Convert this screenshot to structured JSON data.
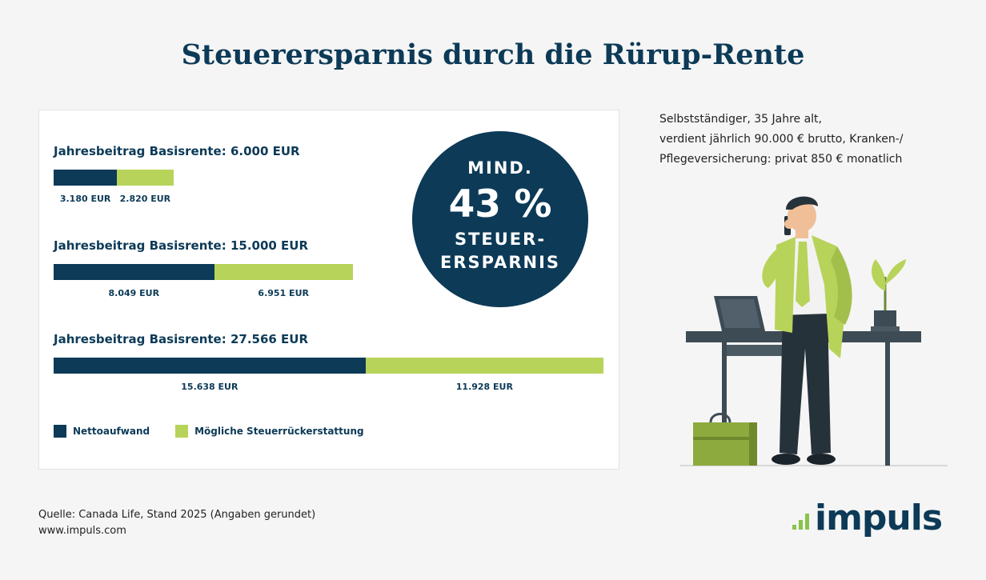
{
  "title": "Steuerersparnis durch die Rürup-Rente",
  "chart_data": {
    "type": "bar",
    "orientation": "horizontal-stacked",
    "groups": [
      {
        "label": "Jahresbeitrag Basisrente: 6.000 EUR",
        "total": 6000,
        "values": [
          3180,
          2820
        ],
        "value_labels": [
          "3.180 EUR",
          "2.820 EUR"
        ]
      },
      {
        "label": "Jahresbeitrag Basisrente: 15.000 EUR",
        "total": 15000,
        "values": [
          8049,
          6951
        ],
        "value_labels": [
          "8.049 EUR",
          "6.951 EUR"
        ]
      },
      {
        "label": "Jahresbeitrag Basisrente: 27.566 EUR",
        "total": 27566,
        "values": [
          15638,
          11928
        ],
        "value_labels": [
          "15.638 EUR",
          "11.928 EUR"
        ]
      }
    ],
    "series": [
      {
        "name": "Nettoaufwand",
        "color": "#0c3a57"
      },
      {
        "name": "Mögliche Steuerrückerstattung",
        "color": "#b7d35a"
      }
    ],
    "xlim": [
      0,
      27566
    ],
    "legend_position": "bottom-left",
    "grid": false
  },
  "highlight": {
    "line1": "MIND.",
    "line2": "43 %",
    "line3": "STEUER-",
    "line4": "ERSPARNIS"
  },
  "description": {
    "line1": "Selbstständiger, 35 Jahre alt,",
    "line2": "verdient jährlich 90.000 € brutto, Kranken-/",
    "line3": "Pflegeversicherung: privat 850 € monatlich"
  },
  "source": {
    "line1": "Quelle: Canada Life, Stand 2025 (Angaben gerundet)",
    "line2": "www.impuls.com"
  },
  "logo": {
    "text": "impuls"
  },
  "illustration": {
    "icon": "businessman-at-desk-phone-icon"
  }
}
